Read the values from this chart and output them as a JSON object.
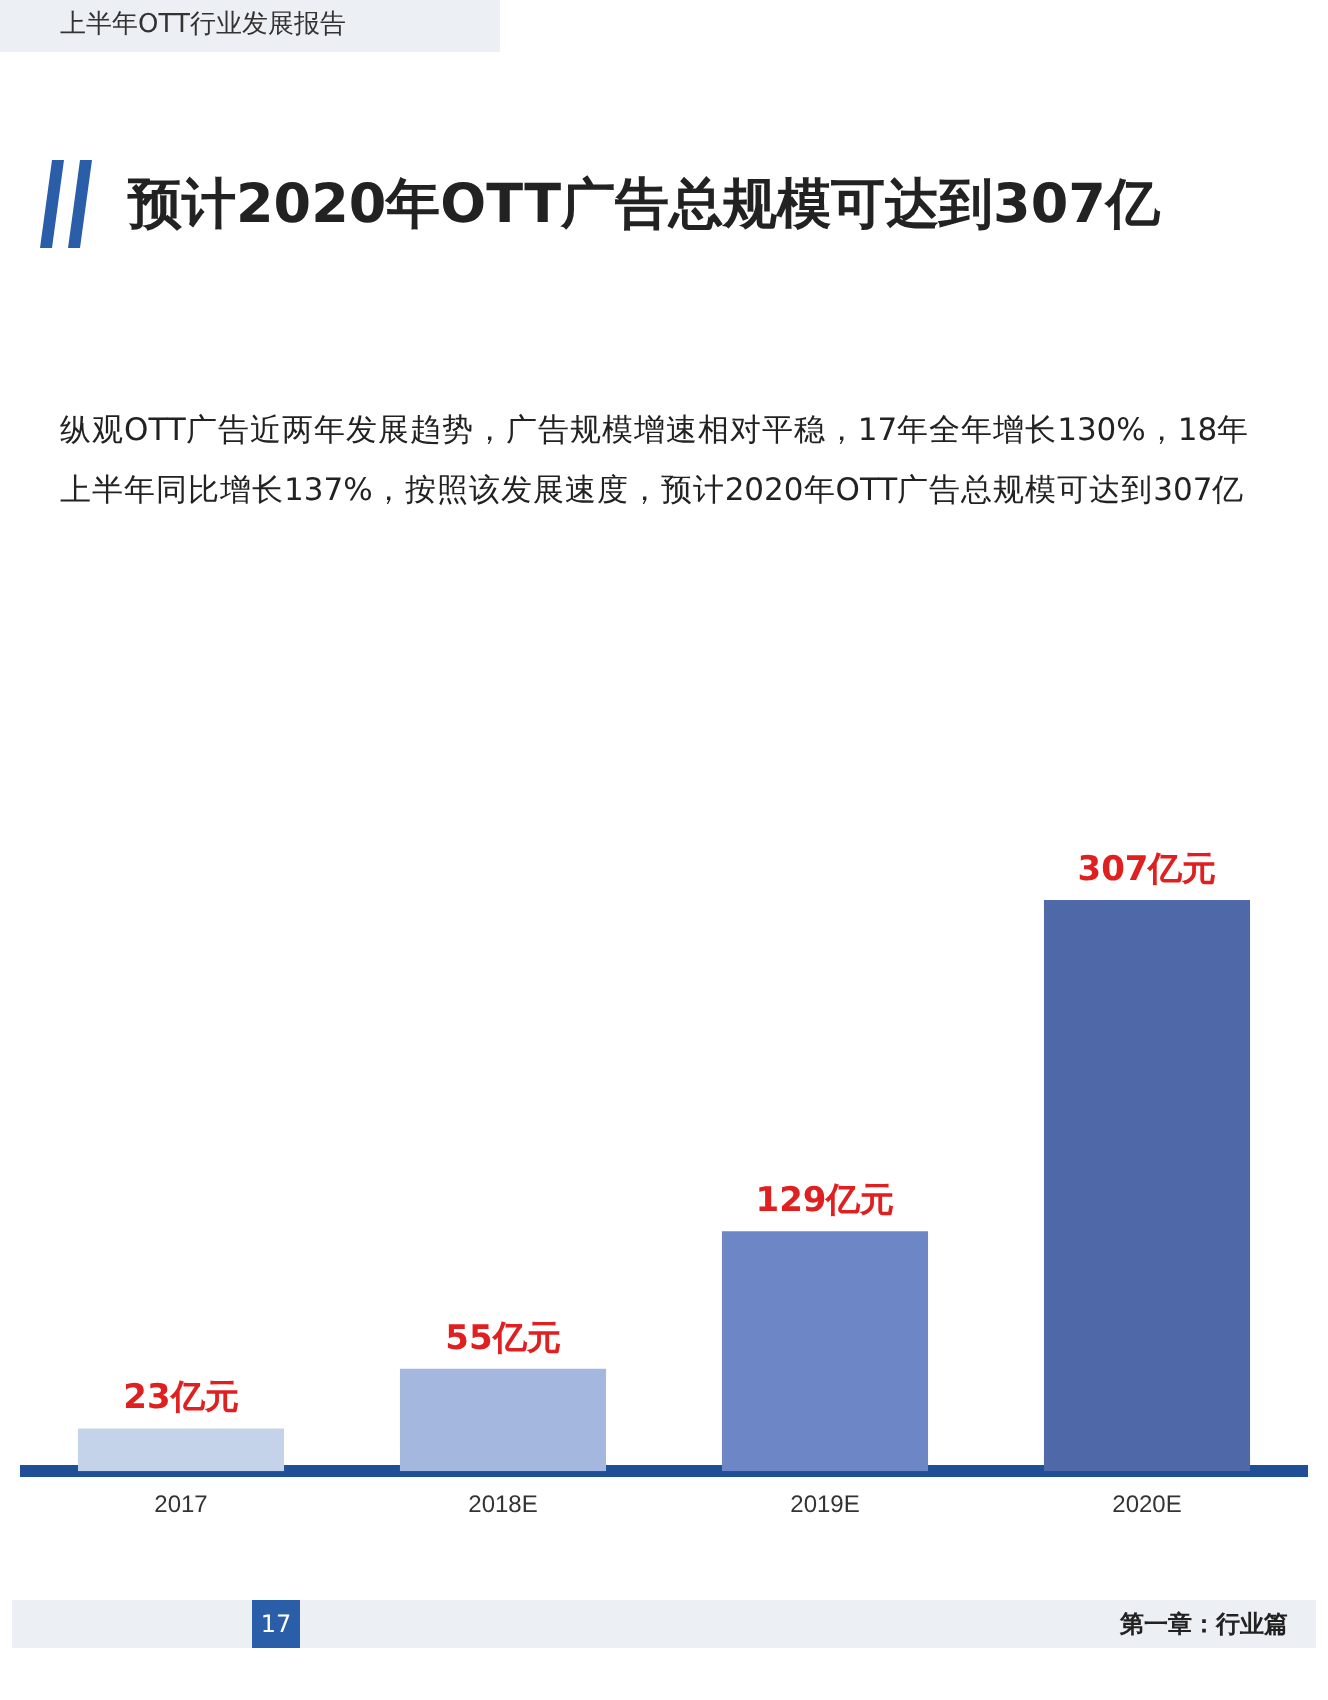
{
  "chart_data": {
    "type": "bar",
    "title": "预计2020年OTT广告总规模可达到307亿",
    "subtitle": "纵观OTT广告近两年发展趋势，广告规模增速相对平稳，17年全年增长130%，18年上半年同比增长137%，按照该发展速度，预计2020年OTT广告总规模可达到307亿",
    "categories": [
      "2017",
      "2018E",
      "2019E",
      "2020E"
    ],
    "values": [
      23,
      55,
      129,
      307
    ],
    "colors": [
      "#c5d3ea",
      "#a4b7df",
      "#6d86c6",
      "#4f68a8"
    ],
    "value_labels": [
      "23亿元",
      "55亿元",
      "129亿元",
      "307亿元"
    ],
    "annotations": [
      "上半年OTT行业发展报告",
      "17",
      "第一章：行业篇"
    ],
    "grid": false,
    "legend": false
  }
}
